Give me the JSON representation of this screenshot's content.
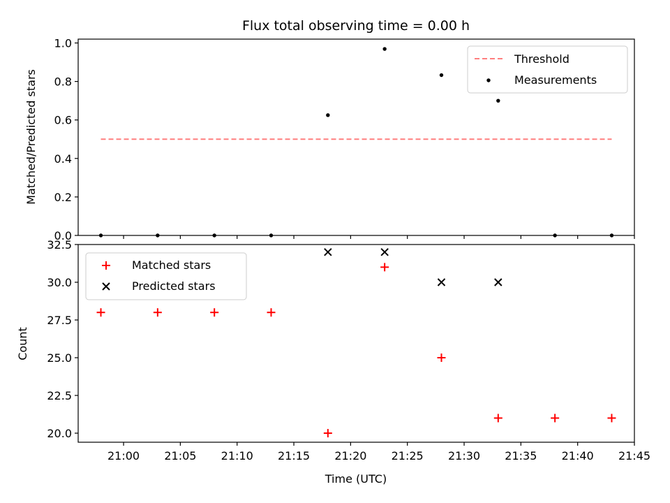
{
  "title": "Flux total observing time = 0.00 h",
  "xlabel": "Time (UTC)",
  "chart_data": [
    {
      "type": "scatter",
      "ylabel": "Matched/Predicted stars",
      "ylim": [
        0.0,
        1.02
      ],
      "yticks": [
        "0.0",
        "0.2",
        "0.4",
        "0.6",
        "0.8",
        "1.0"
      ],
      "ytick_values": [
        0.0,
        0.2,
        0.4,
        0.6,
        0.8,
        1.0
      ],
      "legend_position": "top-right",
      "series": [
        {
          "name": "Threshold",
          "kind": "dashed-line",
          "color": "#ff7f7f",
          "x": [
            "20:58",
            "21:43"
          ],
          "y": [
            0.5,
            0.5
          ]
        },
        {
          "name": "Measurements",
          "kind": "point",
          "color": "#000000",
          "x": [
            "20:58",
            "21:03",
            "21:08",
            "21:13",
            "21:18",
            "21:23",
            "21:28",
            "21:33",
            "21:38",
            "21:43"
          ],
          "y": [
            0.0,
            0.0,
            0.0,
            0.0,
            0.625,
            0.969,
            0.833,
            0.7,
            0.0,
            0.0
          ]
        }
      ]
    },
    {
      "type": "scatter",
      "ylabel": "Count",
      "ylim": [
        19.4,
        32.5
      ],
      "yticks": [
        "20.0",
        "22.5",
        "25.0",
        "27.5",
        "30.0",
        "32.5"
      ],
      "ytick_values": [
        20.0,
        22.5,
        25.0,
        27.5,
        30.0,
        32.5
      ],
      "legend_position": "top-left",
      "series": [
        {
          "name": "Matched stars",
          "kind": "plus",
          "color": "#ff0000",
          "x": [
            "20:58",
            "21:03",
            "21:08",
            "21:13",
            "21:18",
            "21:23",
            "21:28",
            "21:33",
            "21:38",
            "21:43"
          ],
          "y": [
            28,
            28,
            28,
            28,
            20,
            31,
            25,
            21,
            21,
            21
          ]
        },
        {
          "name": "Predicted stars",
          "kind": "cross",
          "color": "#000000",
          "x": [
            "21:18",
            "21:23",
            "21:28",
            "21:33"
          ],
          "y": [
            32,
            32,
            30,
            30
          ]
        }
      ]
    }
  ],
  "xaxis": {
    "xlim": [
      "20:56",
      "21:45"
    ],
    "ticks": [
      "21:00",
      "21:05",
      "21:10",
      "21:15",
      "21:20",
      "21:25",
      "21:30",
      "21:35",
      "21:40",
      "21:45"
    ]
  }
}
